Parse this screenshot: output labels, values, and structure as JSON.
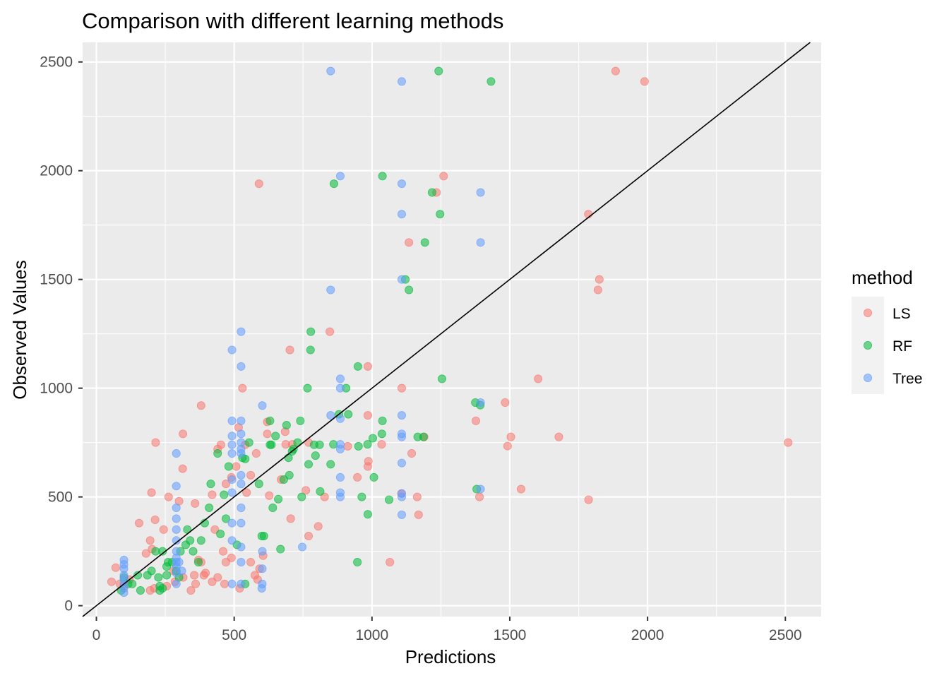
{
  "chart_data": {
    "type": "scatter",
    "title": "Comparison with different learning methods",
    "xlabel": "Predictions",
    "ylabel": "Observed Values",
    "xlim": [
      -50,
      2630
    ],
    "ylim": [
      -50,
      2590
    ],
    "x_ticks": [
      0,
      500,
      1000,
      1500,
      2000,
      2500
    ],
    "x_tick_labels": [
      "0",
      "500",
      "1000",
      "1500",
      "2000",
      "2500"
    ],
    "y_ticks": [
      0,
      500,
      1000,
      1500,
      2000,
      2500
    ],
    "y_tick_labels": [
      "0",
      "500",
      "1000",
      "1500",
      "2000",
      "2500"
    ],
    "grid": true,
    "background": "#ebebeb",
    "reference_line": {
      "slope": 1,
      "intercept": 0,
      "color": "#000000"
    },
    "legend": {
      "title": "method",
      "position": "right",
      "entries": [
        {
          "label": "LS",
          "color": "#F8766D"
        },
        {
          "label": "RF",
          "color": "#00BA38"
        },
        {
          "label": "Tree",
          "color": "#619CFF"
        }
      ]
    },
    "series": [
      {
        "name": "LS",
        "color": "#F8766D",
        "points": [
          [
            1884,
            2458
          ],
          [
            1989,
            2410
          ],
          [
            1260,
            1975
          ],
          [
            590,
            1940
          ],
          [
            1234,
            1900
          ],
          [
            1134,
            1670
          ],
          [
            1785,
            1800
          ],
          [
            1825,
            1500
          ],
          [
            1820,
            1452
          ],
          [
            847,
            1260
          ],
          [
            702,
            1176
          ],
          [
            985,
            1100
          ],
          [
            1108,
            1000
          ],
          [
            530,
            1000
          ],
          [
            1603,
            1043
          ],
          [
            1483,
            934
          ],
          [
            1377,
            850
          ],
          [
            2510,
            750
          ],
          [
            1678,
            776
          ],
          [
            1504,
            776
          ],
          [
            1492,
            734
          ],
          [
            1189,
            776
          ],
          [
            1144,
            700
          ],
          [
            1390,
            500
          ],
          [
            1541,
            536
          ],
          [
            1786,
            487
          ],
          [
            1169,
            418
          ],
          [
            1107,
            516
          ],
          [
            1164,
            500
          ],
          [
            1065,
            200
          ],
          [
            985,
            875
          ],
          [
            987,
            664
          ],
          [
            985,
            640
          ],
          [
            1035,
            742
          ],
          [
            912,
            733
          ],
          [
            947,
            590
          ],
          [
            828,
            500
          ],
          [
            805,
            365
          ],
          [
            770,
            320
          ],
          [
            770,
            750
          ],
          [
            760,
            530
          ],
          [
            711,
            742
          ],
          [
            705,
            400
          ],
          [
            685,
            800
          ],
          [
            687,
            742
          ],
          [
            670,
            580
          ],
          [
            627,
            506
          ],
          [
            620,
            845
          ],
          [
            605,
            230
          ],
          [
            620,
            790
          ],
          [
            592,
            170
          ],
          [
            580,
            700
          ],
          [
            560,
            600
          ],
          [
            545,
            520
          ],
          [
            540,
            740
          ],
          [
            516,
            820
          ],
          [
            507,
            640
          ],
          [
            490,
            590
          ],
          [
            470,
            560
          ],
          [
            460,
            250
          ],
          [
            452,
            740
          ],
          [
            440,
            720
          ],
          [
            420,
            510
          ],
          [
            430,
            350
          ],
          [
            396,
            150
          ],
          [
            390,
            140
          ],
          [
            380,
            920
          ],
          [
            370,
            210
          ],
          [
            360,
            100
          ],
          [
            358,
            470
          ],
          [
            343,
            70
          ],
          [
            314,
            790
          ],
          [
            313,
            630
          ],
          [
            300,
            480
          ],
          [
            280,
            160
          ],
          [
            262,
            500
          ],
          [
            244,
            350
          ],
          [
            215,
            750
          ],
          [
            213,
            395
          ],
          [
            200,
            520
          ],
          [
            195,
            300
          ],
          [
            202,
            260
          ],
          [
            180,
            240
          ],
          [
            155,
            380
          ],
          [
            120,
            120
          ],
          [
            100,
            90
          ],
          [
            85,
            100
          ],
          [
            70,
            175
          ],
          [
            55,
            110
          ],
          [
            210,
            80
          ],
          [
            195,
            70
          ],
          [
            255,
            90
          ],
          [
            285,
            110
          ],
          [
            315,
            130
          ],
          [
            355,
            140
          ],
          [
            380,
            200
          ],
          [
            420,
            110
          ],
          [
            440,
            130
          ],
          [
            465,
            100
          ],
          [
            490,
            220
          ],
          [
            520,
            80
          ],
          [
            560,
            200
          ],
          [
            585,
            120
          ],
          [
            575,
            140
          ],
          [
            470,
            200
          ]
        ]
      },
      {
        "name": "RF",
        "color": "#00BA38",
        "points": [
          [
            1242,
            2458
          ],
          [
            1432,
            2410
          ],
          [
            1038,
            1975
          ],
          [
            862,
            1940
          ],
          [
            1218,
            1900
          ],
          [
            1247,
            1800
          ],
          [
            1192,
            1670
          ],
          [
            1121,
            1500
          ],
          [
            1134,
            1452
          ],
          [
            778,
            1260
          ],
          [
            777,
            1176
          ],
          [
            949,
            1100
          ],
          [
            1254,
            1043
          ],
          [
            766,
            1000
          ],
          [
            906,
            1000
          ],
          [
            1375,
            934
          ],
          [
            1393,
            922
          ],
          [
            1380,
            536
          ],
          [
            1187,
            776
          ],
          [
            1166,
            776
          ],
          [
            1036,
            790
          ],
          [
            1038,
            850
          ],
          [
            1003,
            770
          ],
          [
            984,
            742
          ],
          [
            914,
            880
          ],
          [
            951,
            733
          ],
          [
            1007,
            590
          ],
          [
            1062,
            487
          ],
          [
            963,
            500
          ],
          [
            985,
            420
          ],
          [
            947,
            200
          ],
          [
            880,
            880
          ],
          [
            860,
            742
          ],
          [
            850,
            650
          ],
          [
            810,
            740
          ],
          [
            812,
            525
          ],
          [
            795,
            690
          ],
          [
            790,
            740
          ],
          [
            770,
            650
          ],
          [
            745,
            500
          ],
          [
            740,
            850
          ],
          [
            730,
            750
          ],
          [
            715,
            720
          ],
          [
            710,
            710
          ],
          [
            700,
            600
          ],
          [
            697,
            680
          ],
          [
            690,
            830
          ],
          [
            680,
            580
          ],
          [
            668,
            260
          ],
          [
            660,
            490
          ],
          [
            650,
            780
          ],
          [
            635,
            740
          ],
          [
            630,
            850
          ],
          [
            640,
            450
          ],
          [
            630,
            740
          ],
          [
            608,
            320
          ],
          [
            600,
            320
          ],
          [
            590,
            560
          ],
          [
            554,
            750
          ],
          [
            540,
            675
          ],
          [
            530,
            680
          ],
          [
            510,
            280
          ],
          [
            480,
            640
          ],
          [
            470,
            400
          ],
          [
            463,
            510
          ],
          [
            450,
            330
          ],
          [
            440,
            700
          ],
          [
            415,
            560
          ],
          [
            409,
            450
          ],
          [
            393,
            380
          ],
          [
            380,
            300
          ],
          [
            370,
            200
          ],
          [
            351,
            250
          ],
          [
            340,
            300
          ],
          [
            330,
            350
          ],
          [
            324,
            280
          ],
          [
            305,
            250
          ],
          [
            300,
            130
          ],
          [
            275,
            200
          ],
          [
            255,
            180
          ],
          [
            240,
            80
          ],
          [
            230,
            70
          ],
          [
            225,
            130
          ],
          [
            215,
            250
          ],
          [
            200,
            160
          ],
          [
            185,
            140
          ],
          [
            160,
            70
          ],
          [
            150,
            140
          ],
          [
            130,
            100
          ],
          [
            100,
            130
          ],
          [
            90,
            70
          ],
          [
            115,
            100
          ],
          [
            290,
            160
          ],
          [
            260,
            200
          ],
          [
            240,
            250
          ],
          [
            230,
            90
          ],
          [
            255,
            140
          ],
          [
            540,
            100
          ]
        ]
      },
      {
        "name": "Tree",
        "color": "#619CFF",
        "points": [
          [
            850,
            2458
          ],
          [
            1108,
            2410
          ],
          [
            885,
            1975
          ],
          [
            1108,
            1940
          ],
          [
            1394,
            1900
          ],
          [
            1108,
            1800
          ],
          [
            1394,
            1670
          ],
          [
            1108,
            1500
          ],
          [
            850,
            1452
          ],
          [
            525,
            1260
          ],
          [
            492,
            1176
          ],
          [
            525,
            1100
          ],
          [
            885,
            1043
          ],
          [
            885,
            1000
          ],
          [
            1394,
            934
          ],
          [
            1108,
            875
          ],
          [
            850,
            875
          ],
          [
            885,
            860
          ],
          [
            1108,
            790
          ],
          [
            1108,
            776
          ],
          [
            1108,
            656
          ],
          [
            885,
            742
          ],
          [
            885,
            720
          ],
          [
            885,
            590
          ],
          [
            885,
            520
          ],
          [
            885,
            500
          ],
          [
            1108,
            516
          ],
          [
            1108,
            500
          ],
          [
            1108,
            418
          ],
          [
            1394,
            536
          ],
          [
            747,
            270
          ],
          [
            602,
            920
          ],
          [
            602,
            250
          ],
          [
            602,
            170
          ],
          [
            602,
            100
          ],
          [
            600,
            80
          ],
          [
            525,
            850
          ],
          [
            525,
            790
          ],
          [
            525,
            750
          ],
          [
            525,
            720
          ],
          [
            525,
            700
          ],
          [
            525,
            600
          ],
          [
            525,
            560
          ],
          [
            525,
            450
          ],
          [
            525,
            380
          ],
          [
            525,
            270
          ],
          [
            525,
            200
          ],
          [
            525,
            100
          ],
          [
            492,
            850
          ],
          [
            492,
            780
          ],
          [
            492,
            740
          ],
          [
            492,
            700
          ],
          [
            492,
            580
          ],
          [
            492,
            520
          ],
          [
            492,
            380
          ],
          [
            492,
            300
          ],
          [
            492,
            100
          ],
          [
            290,
            700
          ],
          [
            290,
            550
          ],
          [
            290,
            450
          ],
          [
            290,
            400
          ],
          [
            290,
            350
          ],
          [
            290,
            300
          ],
          [
            290,
            250
          ],
          [
            290,
            200
          ],
          [
            290,
            150
          ],
          [
            290,
            100
          ],
          [
            100,
            210
          ],
          [
            100,
            190
          ],
          [
            100,
            170
          ],
          [
            100,
            140
          ],
          [
            100,
            120
          ],
          [
            100,
            100
          ],
          [
            100,
            80
          ],
          [
            100,
            60
          ],
          [
            290,
            220
          ],
          [
            300,
            200
          ],
          [
            290,
            180
          ],
          [
            310,
            160
          ]
        ]
      }
    ]
  }
}
